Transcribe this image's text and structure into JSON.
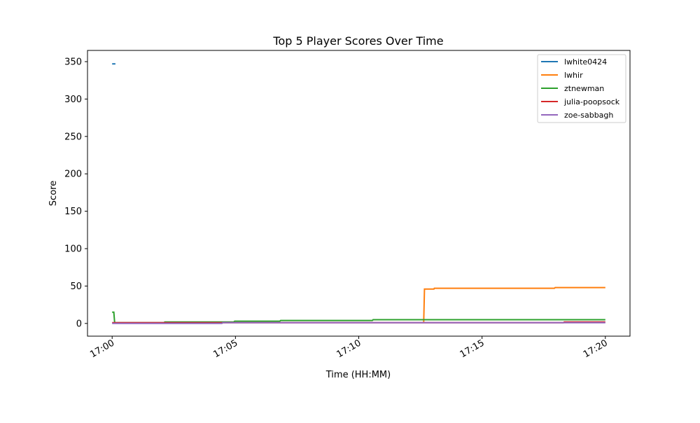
{
  "chart_data": {
    "type": "line",
    "title": "Top 5 Player Scores Over Time",
    "xlabel": "Time (HH:MM)",
    "ylabel": "Score",
    "xlim": [
      "16:59:00",
      "17:21:00"
    ],
    "ylim": [
      -17,
      365
    ],
    "xticks": [
      "17:00",
      "17:05",
      "17:10",
      "17:15",
      "17:20"
    ],
    "yticks": [
      0,
      50,
      100,
      150,
      200,
      250,
      300,
      350
    ],
    "grid": false,
    "legend": "top-right",
    "series": [
      {
        "name": "lwhite0424",
        "color": "#1f77b4",
        "x": [
          "17:00:00",
          "17:00:08"
        ],
        "y": [
          347,
          347
        ]
      },
      {
        "name": "lwhir",
        "color": "#ff7f0e",
        "x": [
          "17:12:38",
          "17:12:40",
          "17:13:03",
          "17:13:04",
          "17:17:56",
          "17:17:58",
          "17:20:00"
        ],
        "y": [
          2,
          46,
          46,
          47,
          47,
          48,
          48
        ]
      },
      {
        "name": "ztnewman",
        "color": "#2ca02c",
        "x": [
          "17:00:00",
          "17:00:04",
          "17:00:06",
          "17:02:06",
          "17:02:08",
          "17:04:56",
          "17:04:58",
          "17:06:48",
          "17:06:50",
          "17:10:33",
          "17:10:35",
          "17:20:00"
        ],
        "y": [
          15,
          15,
          1,
          1,
          2,
          2,
          3,
          3,
          4,
          4,
          5,
          5
        ]
      },
      {
        "name": "julia-poopsock",
        "color": "#d62728",
        "x": [
          "17:00:00",
          "17:18:18",
          "17:18:20",
          "17:20:00"
        ],
        "y": [
          1,
          1,
          2,
          2
        ]
      },
      {
        "name": "zoe-sabbagh",
        "color": "#9467bd",
        "x": [
          "17:00:00",
          "17:04:27",
          "17:04:29",
          "17:20:00"
        ],
        "y": [
          0,
          0,
          1,
          1
        ]
      }
    ]
  }
}
